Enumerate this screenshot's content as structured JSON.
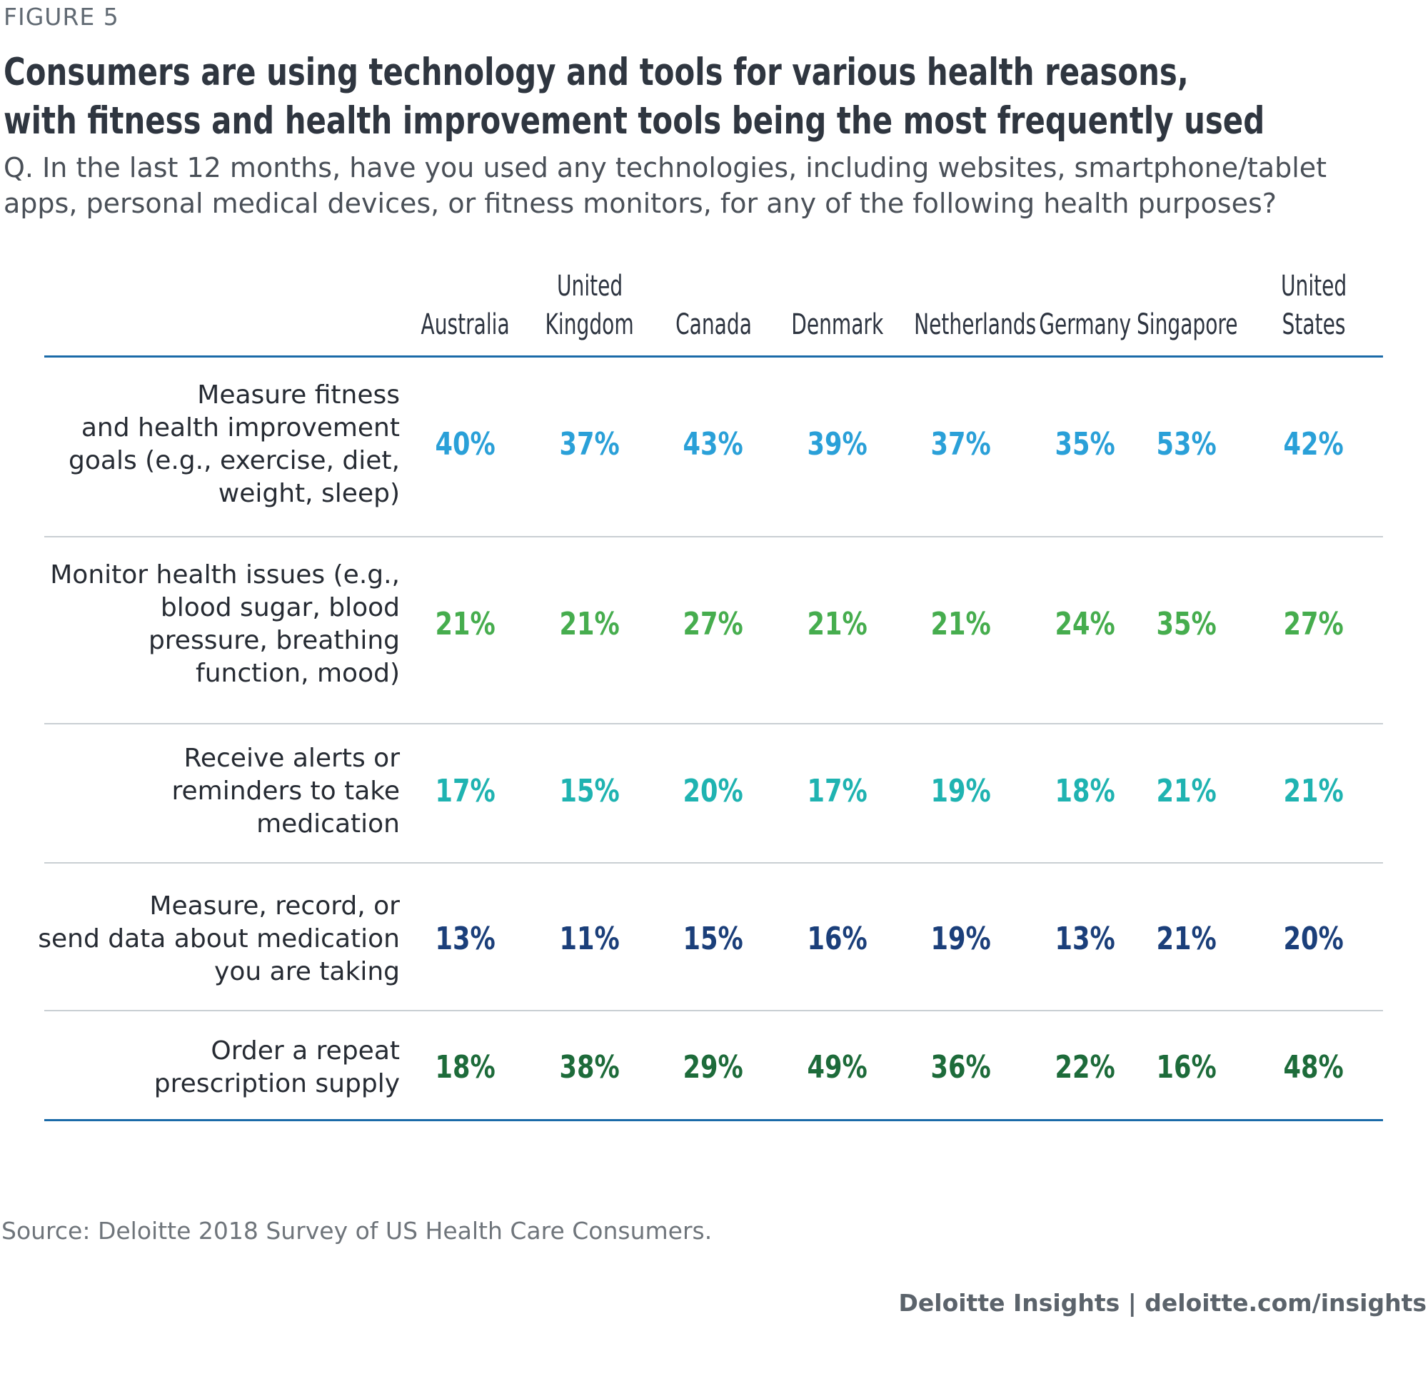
{
  "figure_label": "FIGURE 5",
  "title_lines": [
    "Consumers are using technology and tools for various health reasons,",
    "with fitness and health improvement tools being the most frequently used"
  ],
  "question_lines": [
    "Q. In the last 12 months, have you used any technologies, including websites, smartphone/tablet",
    "apps, personal medical devices, or fitness monitors, for any of the following health purposes?"
  ],
  "source": "Source: Deloitte 2018 Survey of US Health Care Consumers.",
  "credit": "Deloitte Insights | deloitte.com/insights",
  "colors": {
    "row0": "#2aa0d8",
    "row1": "#46ad4e",
    "row2": "#1fb3b1",
    "row3": "#1b3f7a",
    "row4": "#1d6b3a",
    "rule_accent": "#1a6aa8",
    "rule_divider": "#c9cfd3"
  },
  "chart_data": {
    "type": "table",
    "title": "Consumers are using technology and tools for various health reasons, with fitness and health improvement tools being the most frequently used",
    "columns": [
      {
        "line1": "",
        "line2": "Australia"
      },
      {
        "line1": "United",
        "line2": "Kingdom"
      },
      {
        "line1": "",
        "line2": "Canada"
      },
      {
        "line1": "",
        "line2": "Denmark"
      },
      {
        "line1": "",
        "line2": "Netherlands"
      },
      {
        "line1": "",
        "line2": "Germany"
      },
      {
        "line1": "",
        "line2": "Singapore"
      },
      {
        "line1": "United",
        "line2": "States"
      }
    ],
    "rows": [
      {
        "label_lines": [
          "Measure fitness",
          "and health improvement",
          "goals (e.g., exercise, diet,",
          "weight, sleep)"
        ],
        "values": [
          "40%",
          "37%",
          "43%",
          "39%",
          "37%",
          "35%",
          "53%",
          "42%"
        ]
      },
      {
        "label_lines": [
          "Monitor health issues (e.g.,",
          "blood sugar, blood",
          "pressure, breathing",
          "function, mood)"
        ],
        "values": [
          "21%",
          "21%",
          "27%",
          "21%",
          "21%",
          "24%",
          "35%",
          "27%"
        ]
      },
      {
        "label_lines": [
          "Receive alerts or",
          "reminders to take",
          "medication"
        ],
        "values": [
          "17%",
          "15%",
          "20%",
          "17%",
          "19%",
          "18%",
          "21%",
          "21%"
        ]
      },
      {
        "label_lines": [
          "Measure, record, or",
          "send data about medication",
          "you are taking"
        ],
        "values": [
          "13%",
          "11%",
          "15%",
          "16%",
          "19%",
          "13%",
          "21%",
          "20%"
        ]
      },
      {
        "label_lines": [
          "Order a repeat",
          "prescription supply"
        ],
        "values": [
          "18%",
          "38%",
          "29%",
          "49%",
          "36%",
          "22%",
          "16%",
          "48%"
        ]
      }
    ]
  }
}
